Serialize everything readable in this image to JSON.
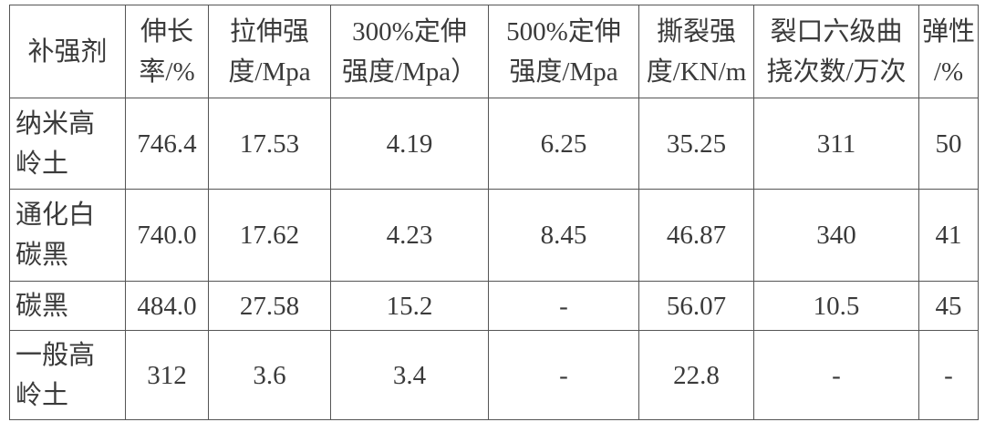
{
  "table": {
    "header": [
      [
        "补强剂"
      ],
      [
        "伸长",
        "率/%"
      ],
      [
        "拉伸强",
        "度/Mpa"
      ],
      [
        "300%定伸",
        "强度/Mpa）"
      ],
      [
        "500%定伸",
        "强度/Mpa"
      ],
      [
        "撕裂强",
        "度/KN/m"
      ],
      [
        "裂口六级曲",
        "挠次数/万次"
      ],
      [
        "弹性",
        "/%"
      ]
    ],
    "rows": [
      [
        [
          "纳米高",
          "岭土"
        ],
        "746.4",
        "17.53",
        "4.19",
        "6.25",
        "35.25",
        "311",
        "50"
      ],
      [
        [
          "通化白",
          "碳黑"
        ],
        "740.0",
        "17.62",
        "4.23",
        "8.45",
        "46.87",
        "340",
        "41"
      ],
      [
        [
          "碳黑"
        ],
        "484.0",
        "27.58",
        "15.2",
        "-",
        "56.07",
        "10.5",
        "45"
      ],
      [
        [
          "一般高",
          "岭土"
        ],
        "312",
        "3.6",
        "3.4",
        "-",
        "22.8",
        "-",
        "-"
      ]
    ]
  }
}
